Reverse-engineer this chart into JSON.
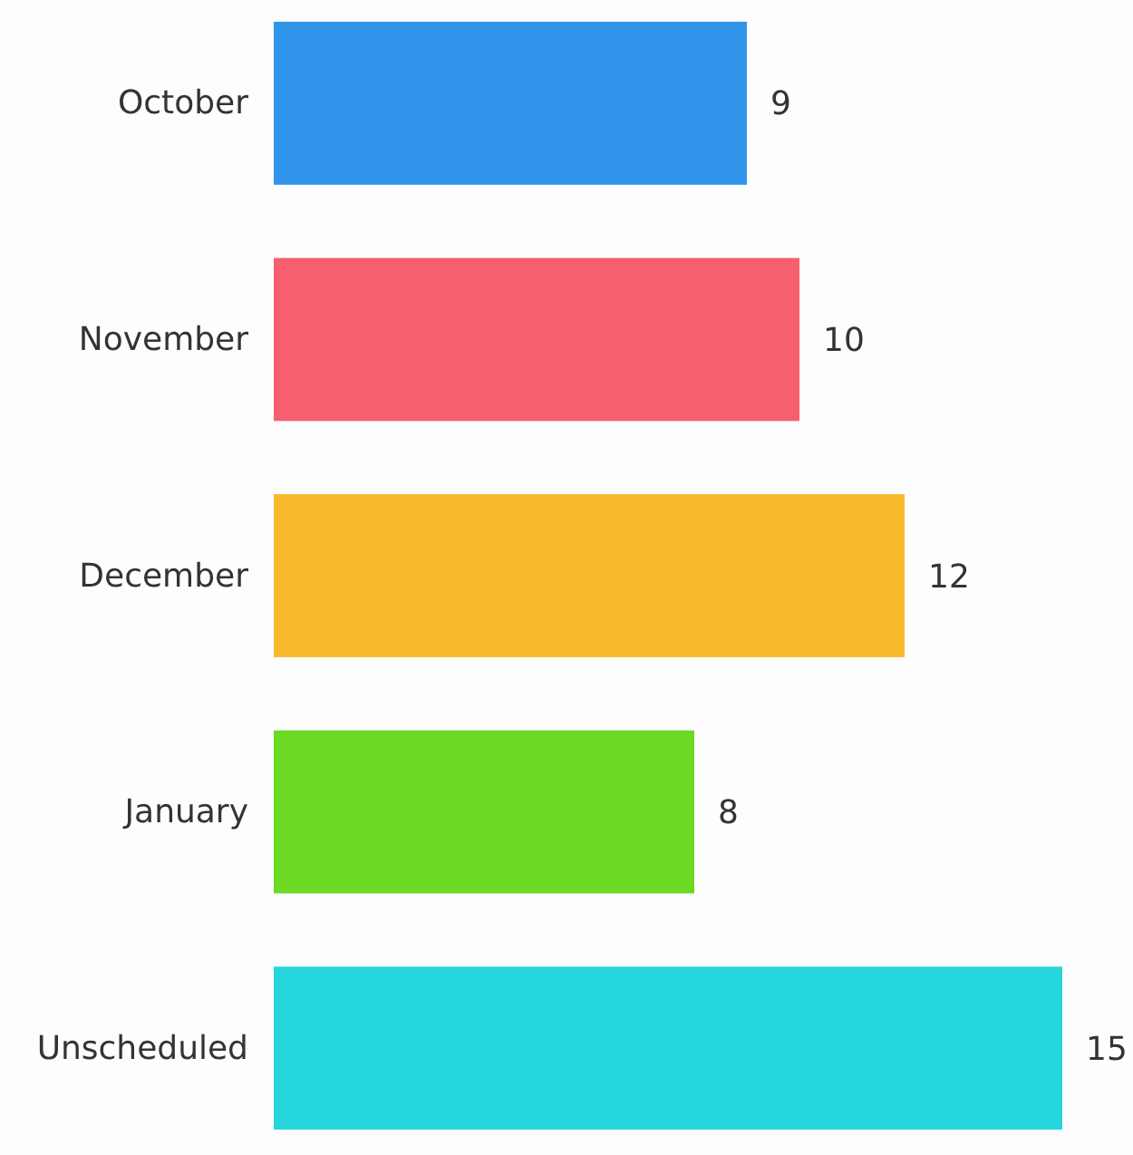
{
  "chart_data": {
    "type": "bar",
    "orientation": "horizontal",
    "data_labels": true,
    "categories": [
      "October",
      "November",
      "December",
      "January",
      "Unscheduled"
    ],
    "values": [
      9,
      10,
      12,
      8,
      15
    ],
    "colors": [
      "#2f94ea",
      "#f75f6f",
      "#f7b92b",
      "#6cd925",
      "#25d7dc"
    ]
  }
}
